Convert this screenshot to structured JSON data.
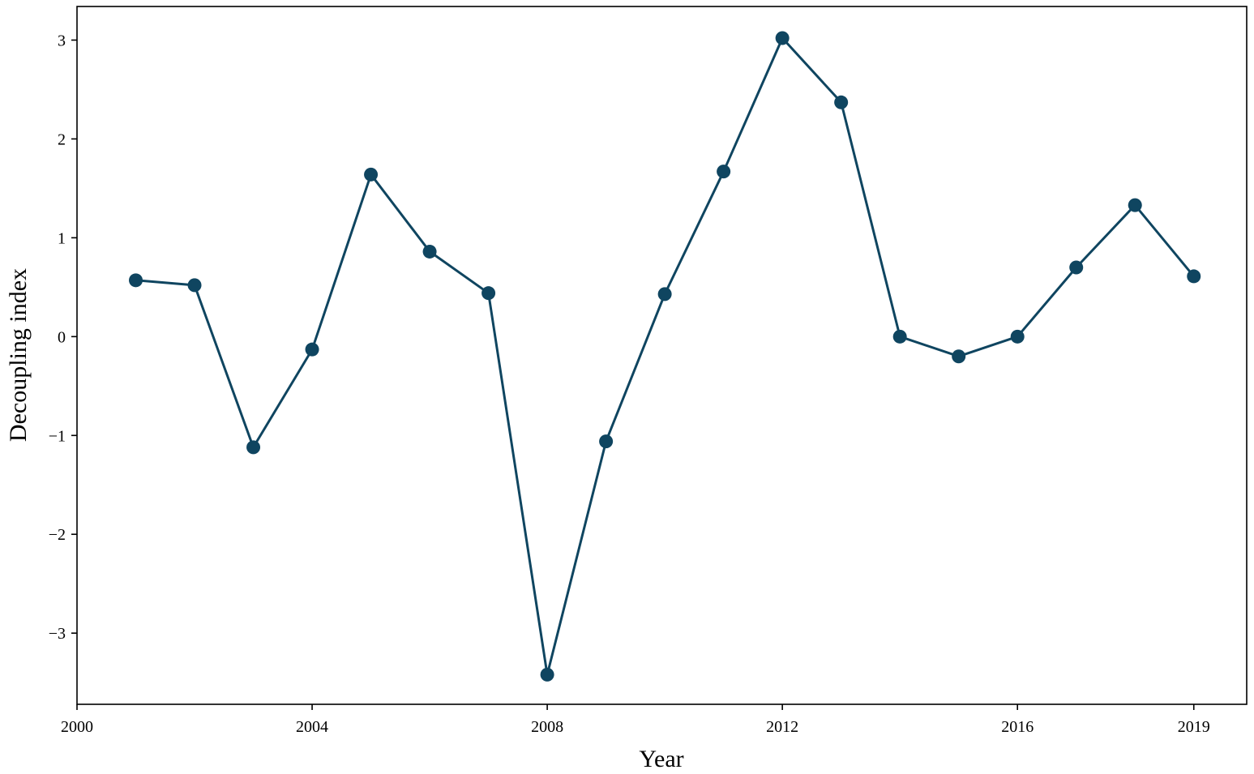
{
  "chart_data": {
    "type": "line",
    "title": "",
    "xlabel": "Year",
    "ylabel": "Decoupling index",
    "xlim": [
      2000,
      2019.9
    ],
    "ylim": [
      -3.72,
      3.34
    ],
    "x_ticks": [
      2000,
      2004,
      2008,
      2012,
      2016,
      2019
    ],
    "y_ticks": [
      -3,
      -2,
      -1,
      0,
      1,
      2,
      3
    ],
    "grid": false,
    "legend": "none",
    "color": "#0f4560",
    "series": [
      {
        "x": [
          2001,
          2002,
          2003,
          2004,
          2005,
          2006,
          2007,
          2008,
          2009,
          2010,
          2011,
          2012,
          2013,
          2014,
          2015,
          2016,
          2017,
          2018,
          2019
        ],
        "values": [
          0.57,
          0.52,
          -1.12,
          -0.13,
          1.64,
          0.86,
          0.44,
          -3.42,
          -1.06,
          0.43,
          1.67,
          3.02,
          2.37,
          0.0,
          -0.2,
          0.0,
          0.7,
          1.33,
          0.61
        ]
      }
    ]
  }
}
